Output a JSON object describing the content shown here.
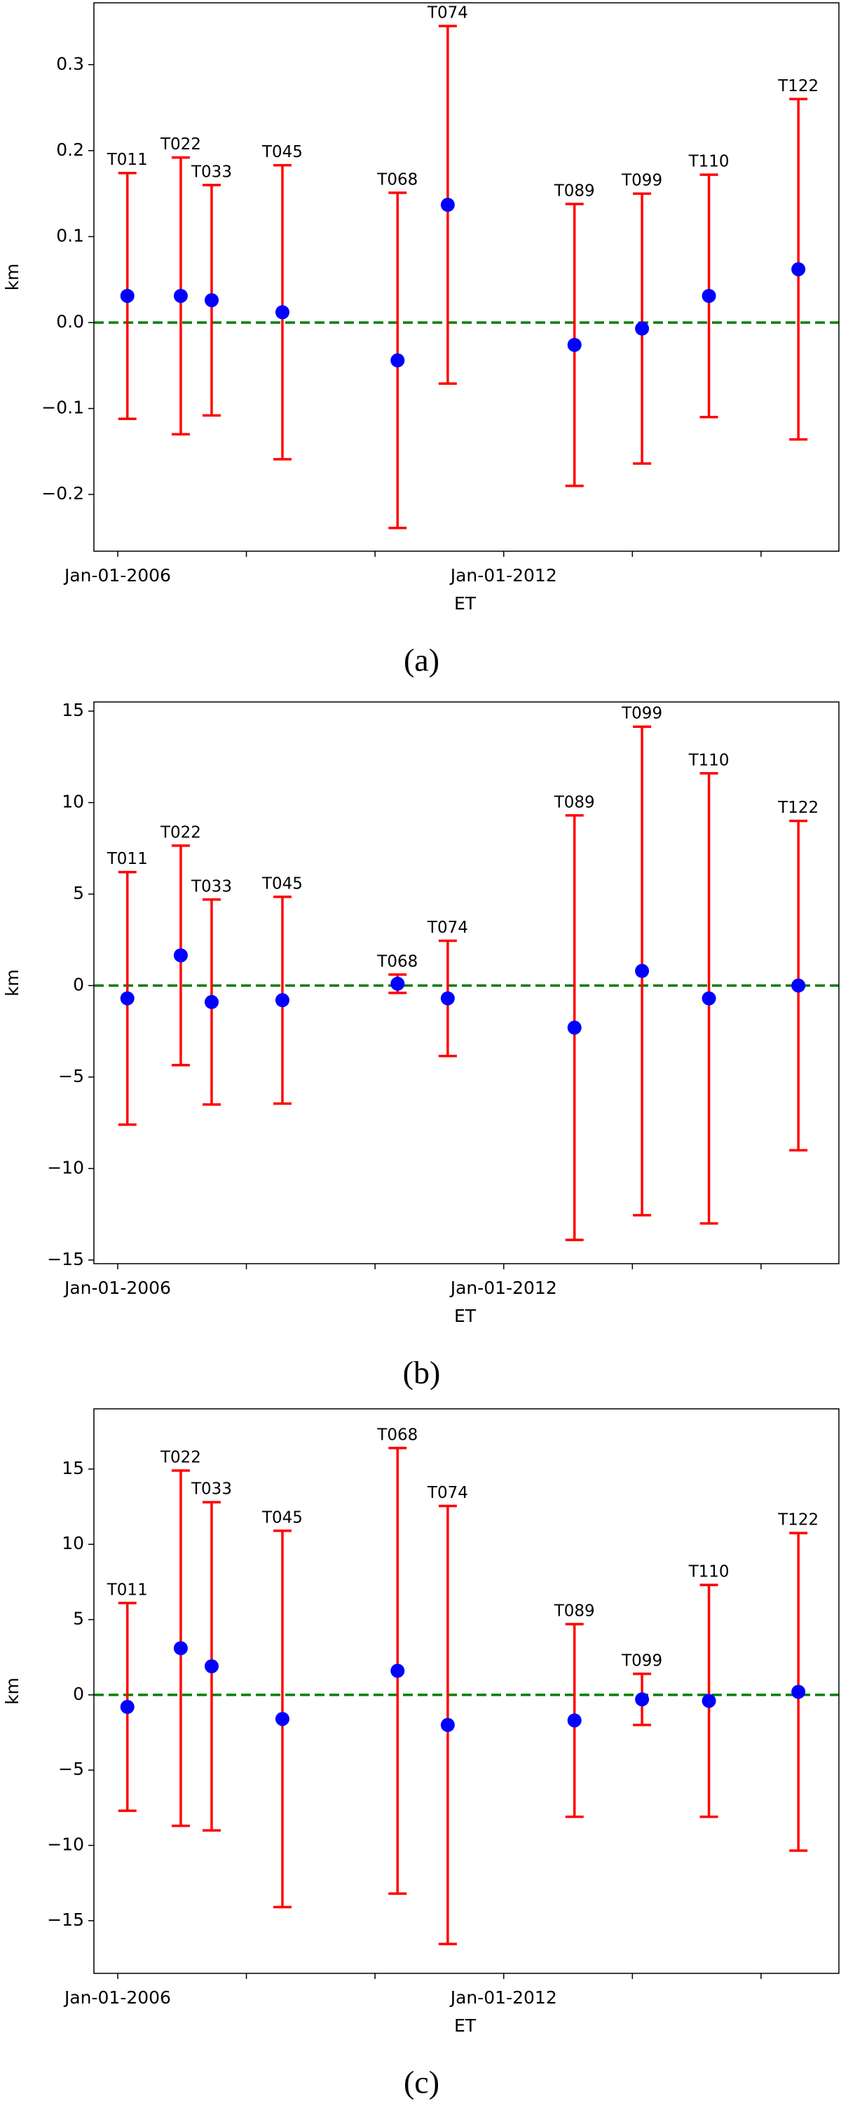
{
  "chart_data": [
    {
      "type": "errorbar",
      "caption": "(a)",
      "x_label": "ET",
      "y_label": "km",
      "labels": [
        "T011",
        "T022",
        "T033",
        "T045",
        "T068",
        "T074",
        "T089",
        "T099",
        "T110",
        "T122"
      ],
      "x": [
        2006.15,
        2006.98,
        2007.46,
        2008.56,
        2010.35,
        2011.13,
        2013.1,
        2014.15,
        2015.19,
        2016.58
      ],
      "values": [
        0.031,
        0.031,
        0.026,
        0.012,
        -0.044,
        0.137,
        -0.026,
        -0.007,
        0.031,
        0.062
      ],
      "errors": [
        0.143,
        0.161,
        0.134,
        0.171,
        0.195,
        0.208,
        0.164,
        0.157,
        0.141,
        0.198
      ],
      "color": "#0000ff",
      "error_color": "#ff0000",
      "reference_line": {
        "value": 0,
        "color": "#008000",
        "style": "dashed"
      },
      "xlim": [
        2005.63,
        2017.21
      ],
      "xticks": [
        {
          "value": 2006,
          "label": "Jan-01-2006"
        },
        {
          "value": 2008,
          "label": null
        },
        {
          "value": 2010,
          "label": null
        },
        {
          "value": 2012,
          "label": "Jan-01-2012"
        },
        {
          "value": 2014,
          "label": null
        },
        {
          "value": 2016,
          "label": null
        }
      ],
      "ylim": [
        -0.266,
        0.372
      ],
      "yticks": [
        {
          "value": -0.2,
          "label": "−0.2"
        },
        {
          "value": -0.1,
          "label": "−0.1"
        },
        {
          "value": 0,
          "label": "0.0"
        },
        0.1,
        0.2,
        0.3
      ]
    },
    {
      "type": "errorbar",
      "caption": "(b)",
      "x_label": "ET",
      "y_label": "km",
      "labels": [
        "T011",
        "T022",
        "T033",
        "T045",
        "T068",
        "T074",
        "T089",
        "T099",
        "T110",
        "T122"
      ],
      "x": [
        2006.15,
        2006.98,
        2007.46,
        2008.56,
        2010.35,
        2011.13,
        2013.1,
        2014.15,
        2015.19,
        2016.58
      ],
      "values": [
        -0.7,
        1.65,
        -0.9,
        -0.8,
        0.1,
        -0.7,
        -2.3,
        0.8,
        -0.7,
        0.0
      ],
      "errors": [
        6.9,
        6.0,
        5.6,
        5.65,
        0.5,
        3.15,
        11.6,
        13.35,
        12.3,
        9.0
      ],
      "color": "#0000ff",
      "error_color": "#ff0000",
      "reference_line": {
        "value": 0,
        "color": "#008000",
        "style": "dashed"
      },
      "xlim": [
        2005.63,
        2017.21
      ],
      "xticks": [
        {
          "value": 2006,
          "label": "Jan-01-2006"
        },
        {
          "value": 2008,
          "label": null
        },
        {
          "value": 2010,
          "label": null
        },
        {
          "value": 2012,
          "label": "Jan-01-2012"
        },
        {
          "value": 2014,
          "label": null
        },
        {
          "value": 2016,
          "label": null
        }
      ],
      "ylim": [
        -15.2,
        15.5
      ],
      "yticks": [
        {
          "value": -15,
          "label": "−15"
        },
        {
          "value": -10,
          "label": "−10"
        },
        {
          "value": -5,
          "label": "−5"
        },
        0,
        5,
        10,
        15
      ]
    },
    {
      "type": "errorbar",
      "caption": "(c)",
      "x_label": "ET",
      "y_label": "km",
      "labels": [
        "T011",
        "T022",
        "T033",
        "T045",
        "T068",
        "T074",
        "T089",
        "T099",
        "T110",
        "T122"
      ],
      "x": [
        2006.15,
        2006.98,
        2007.46,
        2008.56,
        2010.35,
        2011.13,
        2013.1,
        2014.15,
        2015.19,
        2016.58
      ],
      "values": [
        -0.8,
        3.1,
        1.9,
        -1.6,
        1.6,
        -2.0,
        -1.7,
        -0.3,
        -0.4,
        0.2
      ],
      "errors": [
        6.9,
        11.8,
        10.9,
        12.5,
        14.8,
        14.55,
        6.4,
        1.7,
        7.7,
        10.55
      ],
      "color": "#0000ff",
      "error_color": "#ff0000",
      "reference_line": {
        "value": 0,
        "color": "#008000",
        "style": "dashed"
      },
      "xlim": [
        2005.63,
        2017.21
      ],
      "xticks": [
        {
          "value": 2006,
          "label": "Jan-01-2006"
        },
        {
          "value": 2008,
          "label": null
        },
        {
          "value": 2010,
          "label": null
        },
        {
          "value": 2012,
          "label": "Jan-01-2012"
        },
        {
          "value": 2014,
          "label": null
        },
        {
          "value": 2016,
          "label": null
        }
      ],
      "ylim": [
        -18.5,
        19.0
      ],
      "yticks": [
        {
          "value": -15,
          "label": "−15"
        },
        {
          "value": -10,
          "label": "−10"
        },
        {
          "value": -5,
          "label": "−5"
        },
        0,
        5,
        10,
        15
      ]
    }
  ]
}
